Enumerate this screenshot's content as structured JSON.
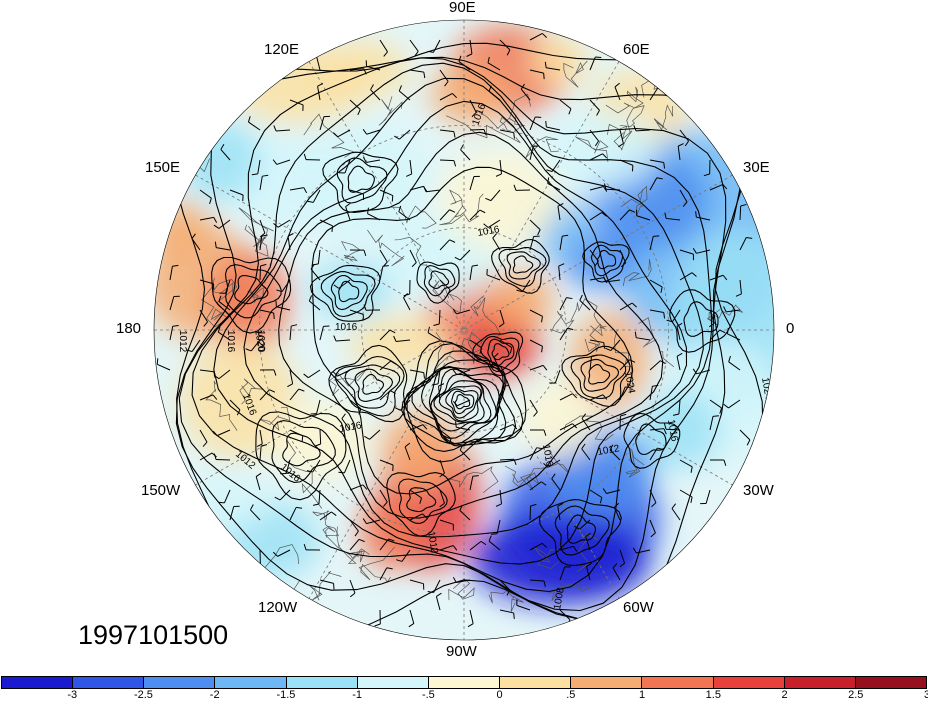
{
  "map": {
    "projection": "north-polar-stereographic",
    "longitude_labels": [
      {
        "id": "lon-90e",
        "text": "90E"
      },
      {
        "id": "lon-60e",
        "text": "60E"
      },
      {
        "id": "lon-120e",
        "text": "120E"
      },
      {
        "id": "lon-150e",
        "text": "150E"
      },
      {
        "id": "lon-30e",
        "text": "30E"
      },
      {
        "id": "lon-180",
        "text": "180"
      },
      {
        "id": "lon-0",
        "text": "0"
      },
      {
        "id": "lon-150w",
        "text": "150W"
      },
      {
        "id": "lon-30w",
        "text": "30W"
      },
      {
        "id": "lon-120w",
        "text": "120W"
      },
      {
        "id": "lon-60w",
        "text": "60W"
      },
      {
        "id": "lon-90w",
        "text": "90W"
      }
    ],
    "contour_labels": [
      "1016",
      "1016",
      "1016",
      "1012",
      "1016",
      "1020",
      "1016",
      "1016",
      "1012",
      "1016",
      "1020",
      "1024",
      "1016",
      "1012",
      "1024",
      "1016",
      "1012",
      "1008"
    ],
    "date_stamp": "1997101500"
  },
  "colorbar": {
    "colors": [
      "#1a1ad0",
      "#2f56e6",
      "#4f8ef0",
      "#6cb7f4",
      "#9be2f6",
      "#d4f6fa",
      "#fdf6d2",
      "#fbe0a2",
      "#f6ad73",
      "#f17553",
      "#e8413c",
      "#c8202a",
      "#96101e"
    ],
    "labels": [
      "-3",
      "-2.5",
      "-2",
      "-1.5",
      "-1",
      "-.5",
      "0",
      ".5",
      "1",
      "1.5",
      "2",
      "2.5",
      "3"
    ]
  }
}
